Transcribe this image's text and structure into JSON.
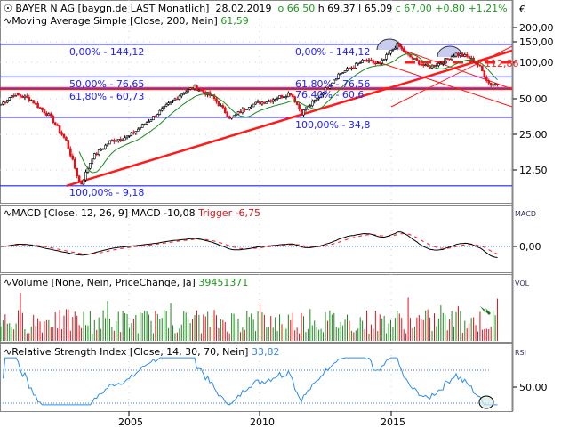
{
  "header": {
    "symbol": "BAYER N AG [baygn.de LAST Monatlich]",
    "date": "28.02.2019",
    "open": "o 66,50",
    "high": "h 69,37",
    "low": "l 65,09",
    "close": "c 67,00",
    "change": "+0,80",
    "change_pct": "+1,21%"
  },
  "sma": {
    "label": "Moving Average Simple  [Close, 200, Nein]",
    "value": "61,59"
  },
  "macd": {
    "label": "MACD  [Close, 12, 26, 9]",
    "macd": "MACD -10,08",
    "trigger": "Trigger -6,75",
    "axis_title": "MACD",
    "tick": "0,00"
  },
  "volume": {
    "label": "Volume  [None, Nein, PriceChange, Ja]",
    "value": "39451371",
    "axis_title": "VOL"
  },
  "rsi": {
    "label": "Relative Strength Index  [Close, 14, 30, 70, Nein]",
    "value": "33,82",
    "axis_title": "RSI",
    "tick": "50,00"
  },
  "currency": "€",
  "price_ticks": [
    "200,00",
    "150,00",
    "100,00",
    "50,00",
    "25,00",
    "12,50"
  ],
  "fib_left": [
    "0,00% - 144,12",
    "50,00% - 76,65",
    "61,80% - 60,73",
    "100,00% - 9,18"
  ],
  "fib_right": [
    "0,00% - 144,12",
    "61,80% - 76,56",
    "76,40% - 60,6",
    "100,00% - 34,8"
  ],
  "level_label": "112,86",
  "colors": {
    "up": "#000000",
    "down": "#e0101a",
    "sma": "#1a8a1a",
    "fib": "#2020ff",
    "trend": "#ff1a1a",
    "rsi": "#2a8cf0",
    "vol_up": "#1a8a1a",
    "vol_down": "#e0101a"
  },
  "chart_data": {
    "type": "candlestick",
    "title": "BAYER N AG monthly",
    "x_ticks": [
      "2005",
      "2010",
      "2015"
    ],
    "y_scale": "log",
    "ylim": [
      8,
      230
    ],
    "keypoints": {
      "x": [
        2000.1,
        2000.6,
        2001.2,
        2002.0,
        2002.6,
        2003.15,
        2003.6,
        2004.3,
        2005.0,
        2006.0,
        2007.0,
        2007.5,
        2008.2,
        2008.9,
        2009.6,
        2010.3,
        2011.2,
        2011.6,
        2012.2,
        2013.0,
        2014.0,
        2014.6,
        2015.25,
        2015.7,
        2016.4,
        2016.9,
        2017.5,
        2018.0,
        2018.4,
        2018.8,
        2019.1
      ],
      "y": [
        45,
        55,
        50,
        35,
        22,
        9.2,
        16,
        22,
        24,
        36,
        55,
        63,
        52,
        34,
        44,
        48,
        56,
        38,
        50,
        80,
        105,
        98,
        144,
        115,
        92,
        100,
        120,
        112,
        95,
        66,
        67
      ]
    },
    "levels": [
      144.12,
      76.65,
      60.73,
      34.8,
      9.18,
      112.86,
      60.6
    ],
    "rsi_levels": [
      30,
      50,
      70
    ]
  }
}
